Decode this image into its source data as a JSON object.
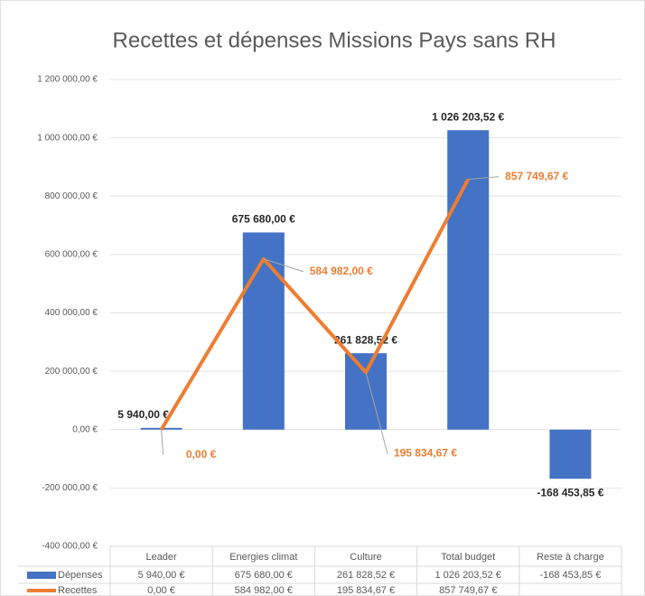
{
  "chart_data": {
    "type": "bar-line",
    "title": "Recettes et dépenses Missions Pays sans RH",
    "categories": [
      "Leader",
      "Energies climat",
      "Culture",
      "Total budget",
      "Reste à charge"
    ],
    "series": [
      {
        "name": "Dépenses",
        "type": "bar",
        "color": "#4472c4",
        "values": [
          5940,
          675680,
          261828.52,
          1026203.52,
          -168453.85
        ],
        "value_labels": [
          "5 940,00 €",
          "675 680,00 €",
          "261 828,52 €",
          "1 026 203,52 €",
          "-168 453,85 €"
        ]
      },
      {
        "name": "Recettes",
        "type": "line",
        "color": "#ed7d31",
        "values": [
          0,
          584982,
          195834.67,
          857749.67,
          null
        ],
        "value_labels": [
          "0,00 €",
          "584 982,00 €",
          "195 834,67 €",
          "857 749,67 €",
          null
        ]
      }
    ],
    "ylim": [
      -400000,
      1200000
    ],
    "yticks": [
      {
        "value": -400000,
        "label": "-400 000,00 €"
      },
      {
        "value": -200000,
        "label": "-200 000,00 €"
      },
      {
        "value": 0,
        "label": "0,00 €"
      },
      {
        "value": 200000,
        "label": "200 000,00 €"
      },
      {
        "value": 400000,
        "label": "400 000,00 €"
      },
      {
        "value": 600000,
        "label": "600 000,00 €"
      },
      {
        "value": 800000,
        "label": "800 000,00 €"
      },
      {
        "value": 1000000,
        "label": "1 000 000,00 €"
      },
      {
        "value": 1200000,
        "label": "1 200 000,00 €"
      }
    ],
    "grid": true,
    "data_table": true
  }
}
